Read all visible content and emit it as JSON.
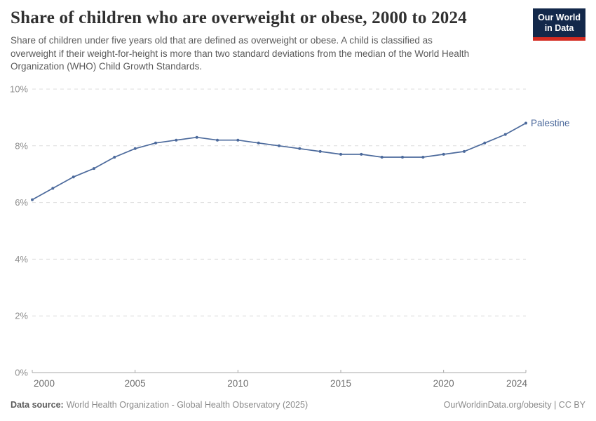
{
  "header": {
    "title": "Share of children who are overweight or obese, 2000 to 2024",
    "subtitle": "Share of children under five years old that are defined as overweight or obese. A child is classified as\noverweight if their weight-for-height is more than two standard deviations from the median of the World Health\nOrganization (WHO) Child Growth Standards.",
    "logo_line1": "Our World",
    "logo_line2": "in Data"
  },
  "chart_data": {
    "type": "line",
    "title": "Share of children who are overweight or obese, 2000 to 2024",
    "xlabel": "",
    "ylabel": "",
    "xlim": [
      2000,
      2024
    ],
    "ylim": [
      0,
      10
    ],
    "x_ticks": [
      2000,
      2005,
      2010,
      2015,
      2020,
      2024
    ],
    "y_ticks": [
      0,
      2,
      4,
      6,
      8,
      10
    ],
    "y_suffix": "%",
    "grid": "horizontal-dashed",
    "legend_position": "end-of-line-label",
    "series": [
      {
        "name": "Palestine",
        "color": "#4c6a9c",
        "x": [
          2000,
          2001,
          2002,
          2003,
          2004,
          2005,
          2006,
          2007,
          2008,
          2009,
          2010,
          2011,
          2012,
          2013,
          2014,
          2015,
          2016,
          2017,
          2018,
          2019,
          2020,
          2021,
          2022,
          2023,
          2024
        ],
        "values": [
          6.1,
          6.5,
          6.9,
          7.2,
          7.6,
          7.9,
          8.1,
          8.2,
          8.3,
          8.2,
          8.2,
          8.1,
          8.0,
          7.9,
          7.8,
          7.7,
          7.7,
          7.6,
          7.6,
          7.6,
          7.7,
          7.8,
          8.1,
          8.4,
          8.8
        ]
      }
    ]
  },
  "footer": {
    "source_label": "Data source:",
    "source_text": "World Health Organization - Global Health Observatory (2025)",
    "credit": "OurWorldinData.org/obesity | CC BY"
  },
  "colors": {
    "line": "#4c6a9c",
    "grid": "#dcdcdc",
    "axis": "#a8a8a8",
    "y_tick_label": "#8f8f8f",
    "x_tick_label": "#6d6d6d",
    "title": "#303030",
    "subtitle": "#5b5b5b",
    "logo_bg": "#13284a",
    "logo_red": "#d42b21"
  }
}
